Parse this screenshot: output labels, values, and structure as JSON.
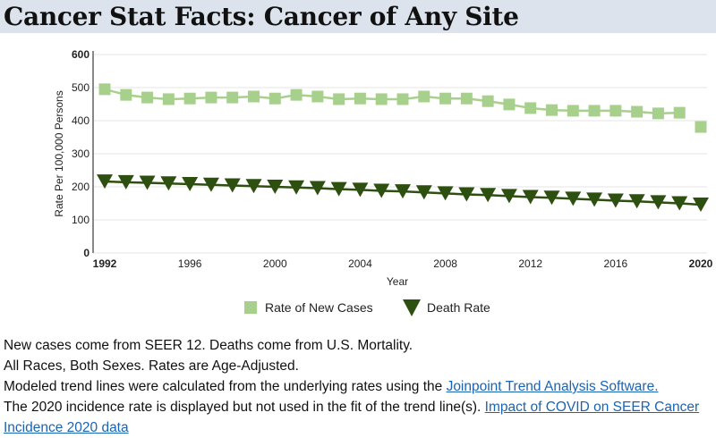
{
  "title": "Cancer Stat Facts: Cancer of Any Site",
  "chart_data": {
    "type": "line",
    "xlabel": "Year",
    "ylabel": "Rate Per 100,000 Persons",
    "xlim": [
      1992,
      2020
    ],
    "ylim": [
      0,
      600
    ],
    "yticks": [
      0,
      100,
      200,
      300,
      400,
      500,
      600
    ],
    "xticks": [
      1992,
      1996,
      2000,
      2004,
      2008,
      2012,
      2016,
      2020
    ],
    "grid": true,
    "legend_placement": "bottom",
    "x": [
      1992,
      1993,
      1994,
      1995,
      1996,
      1997,
      1998,
      1999,
      2000,
      2001,
      2002,
      2003,
      2004,
      2005,
      2006,
      2007,
      2008,
      2009,
      2010,
      2011,
      2012,
      2013,
      2014,
      2015,
      2016,
      2017,
      2018,
      2019,
      2020
    ],
    "series": [
      {
        "name": "Rate of New Cases",
        "color": "#a8d08d",
        "marker": "square",
        "values": [
          495,
          478,
          470,
          465,
          467,
          470,
          470,
          473,
          467,
          478,
          473,
          465,
          467,
          465,
          465,
          473,
          467,
          467,
          459,
          449,
          438,
          432,
          430,
          430,
          430,
          427,
          422,
          424,
          381
        ],
        "trend_excludes": [
          2020
        ]
      },
      {
        "name": "Death Rate",
        "color": "#2d5010",
        "marker": "triangle-down",
        "values": [
          216,
          214,
          212,
          210,
          208,
          206,
          204,
          202,
          200,
          198,
          196,
          193,
          191,
          188,
          186,
          183,
          180,
          177,
          175,
          172,
          169,
          167,
          164,
          161,
          158,
          156,
          153,
          150,
          146
        ]
      }
    ]
  },
  "notes": {
    "line1": "New cases come from SEER 12. Deaths come from U.S. Mortality.",
    "line2": "All Races, Both Sexes. Rates are Age-Adjusted.",
    "line3_text": "Modeled trend lines were calculated from the underlying rates using the ",
    "line3_link": "Joinpoint Trend Analysis Software.",
    "line4_text": "The 2020 incidence rate is displayed but not used in the fit of the trend line(s). ",
    "line4_link": "Impact of COVID on SEER Cancer Incidence 2020 data"
  }
}
